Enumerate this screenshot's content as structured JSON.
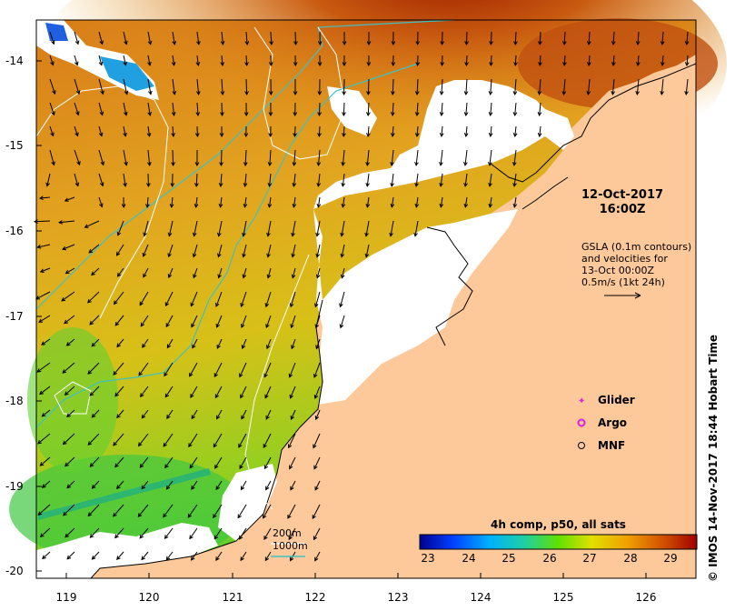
{
  "map": {
    "timestamp_date": "12-Oct-2017",
    "timestamp_time": "16:00Z",
    "gsla_lines": [
      "GSLA (0.1m contours)",
      "and velocities for",
      "13-Oct 00:00Z",
      "0.5m/s (1kt 24h)"
    ],
    "legend": {
      "glider": "Glider",
      "argo": "Argo",
      "mnf": "MNF",
      "glider_color": "#e020e0",
      "argo_color": "#e020e0"
    },
    "isobaths": {
      "shallow": "200m",
      "deep": "1000m",
      "shallow_color": "#ffffff",
      "deep_color": "#40c0c0"
    },
    "colorbar": {
      "title": "4h comp, p50, all sats",
      "ticks": [
        "23",
        "24",
        "25",
        "26",
        "27",
        "28",
        "29"
      ],
      "colors": [
        "#0000a0",
        "#0050ff",
        "#00b0ff",
        "#20d0a0",
        "#60e000",
        "#e0e000",
        "#f0a000",
        "#d05000",
        "#a00000"
      ]
    },
    "lat_ticks": [
      "-14",
      "-15",
      "-16",
      "-17",
      "-18",
      "-19",
      "-20"
    ],
    "lon_ticks": [
      "119",
      "120",
      "121",
      "122",
      "123",
      "124",
      "125",
      "126"
    ],
    "land_color": "#fdc99a",
    "credit": "© IMOS 14-Nov-2017 18:44 Hobart Time"
  }
}
